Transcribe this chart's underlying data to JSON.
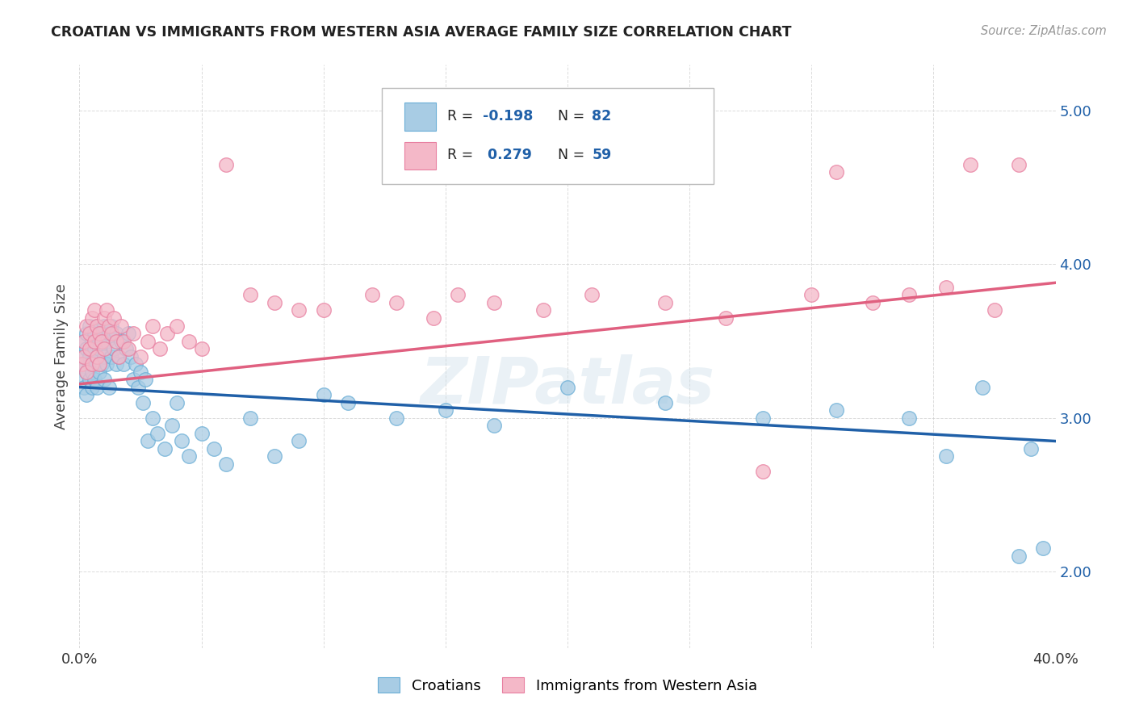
{
  "title": "CROATIAN VS IMMIGRANTS FROM WESTERN ASIA AVERAGE FAMILY SIZE CORRELATION CHART",
  "source": "Source: ZipAtlas.com",
  "ylabel": "Average Family Size",
  "xlim": [
    0.0,
    0.4
  ],
  "ylim": [
    1.5,
    5.3
  ],
  "yticks": [
    2.0,
    3.0,
    4.0,
    5.0
  ],
  "xticks": [
    0.0,
    0.05,
    0.1,
    0.15,
    0.2,
    0.25,
    0.3,
    0.35,
    0.4
  ],
  "blue_color": "#a8cce4",
  "blue_edge": "#6aaed6",
  "pink_color": "#f4b8c8",
  "pink_edge": "#e87fa0",
  "blue_line_color": "#2060a8",
  "pink_line_color": "#e06080",
  "blue_intercept": 3.2,
  "blue_slope": -0.88,
  "pink_intercept": 3.22,
  "pink_slope": 1.65,
  "background_color": "#ffffff",
  "grid_color": "#cccccc",
  "watermark": "ZIPatlas",
  "blue_scatter_x": [
    0.001,
    0.001,
    0.002,
    0.002,
    0.002,
    0.003,
    0.003,
    0.003,
    0.003,
    0.004,
    0.004,
    0.004,
    0.004,
    0.005,
    0.005,
    0.005,
    0.005,
    0.006,
    0.006,
    0.006,
    0.006,
    0.007,
    0.007,
    0.007,
    0.008,
    0.008,
    0.008,
    0.009,
    0.009,
    0.01,
    0.01,
    0.01,
    0.011,
    0.011,
    0.012,
    0.012,
    0.013,
    0.013,
    0.014,
    0.015,
    0.015,
    0.016,
    0.017,
    0.018,
    0.019,
    0.02,
    0.021,
    0.022,
    0.023,
    0.024,
    0.025,
    0.026,
    0.027,
    0.028,
    0.03,
    0.032,
    0.035,
    0.038,
    0.04,
    0.042,
    0.045,
    0.05,
    0.055,
    0.06,
    0.07,
    0.08,
    0.09,
    0.1,
    0.11,
    0.13,
    0.15,
    0.17,
    0.2,
    0.24,
    0.28,
    0.31,
    0.34,
    0.355,
    0.37,
    0.385,
    0.39,
    0.395
  ],
  "blue_scatter_y": [
    3.4,
    3.25,
    3.35,
    3.5,
    3.2,
    3.3,
    3.45,
    3.15,
    3.55,
    3.4,
    3.25,
    3.6,
    3.35,
    3.45,
    3.3,
    3.2,
    3.5,
    3.35,
    3.45,
    3.25,
    3.55,
    3.4,
    3.2,
    3.6,
    3.5,
    3.3,
    3.45,
    3.35,
    3.55,
    3.4,
    3.25,
    3.6,
    3.5,
    3.35,
    3.55,
    3.2,
    3.6,
    3.4,
    3.45,
    3.35,
    3.55,
    3.4,
    3.5,
    3.35,
    3.45,
    3.55,
    3.4,
    3.25,
    3.35,
    3.2,
    3.3,
    3.1,
    3.25,
    2.85,
    3.0,
    2.9,
    2.8,
    2.95,
    3.1,
    2.85,
    2.75,
    2.9,
    2.8,
    2.7,
    3.0,
    2.75,
    2.85,
    3.15,
    3.1,
    3.0,
    3.05,
    2.95,
    3.2,
    3.1,
    3.0,
    3.05,
    3.0,
    2.75,
    3.2,
    2.1,
    2.8,
    2.15
  ],
  "pink_scatter_x": [
    0.001,
    0.002,
    0.002,
    0.003,
    0.003,
    0.004,
    0.004,
    0.005,
    0.005,
    0.006,
    0.006,
    0.007,
    0.007,
    0.008,
    0.008,
    0.009,
    0.01,
    0.01,
    0.011,
    0.012,
    0.013,
    0.014,
    0.015,
    0.016,
    0.017,
    0.018,
    0.02,
    0.022,
    0.025,
    0.028,
    0.03,
    0.033,
    0.036,
    0.04,
    0.045,
    0.05,
    0.06,
    0.07,
    0.08,
    0.09,
    0.1,
    0.12,
    0.13,
    0.145,
    0.155,
    0.17,
    0.19,
    0.21,
    0.24,
    0.265,
    0.28,
    0.3,
    0.31,
    0.325,
    0.34,
    0.355,
    0.365,
    0.375,
    0.385
  ],
  "pink_scatter_y": [
    3.35,
    3.5,
    3.4,
    3.6,
    3.3,
    3.55,
    3.45,
    3.65,
    3.35,
    3.7,
    3.5,
    3.6,
    3.4,
    3.55,
    3.35,
    3.5,
    3.65,
    3.45,
    3.7,
    3.6,
    3.55,
    3.65,
    3.5,
    3.4,
    3.6,
    3.5,
    3.45,
    3.55,
    3.4,
    3.5,
    3.6,
    3.45,
    3.55,
    3.6,
    3.5,
    3.45,
    4.65,
    3.8,
    3.75,
    3.7,
    3.7,
    3.8,
    3.75,
    3.65,
    3.8,
    3.75,
    3.7,
    3.8,
    3.75,
    3.65,
    2.65,
    3.8,
    4.6,
    3.75,
    3.8,
    3.85,
    4.65,
    3.7,
    4.65
  ]
}
